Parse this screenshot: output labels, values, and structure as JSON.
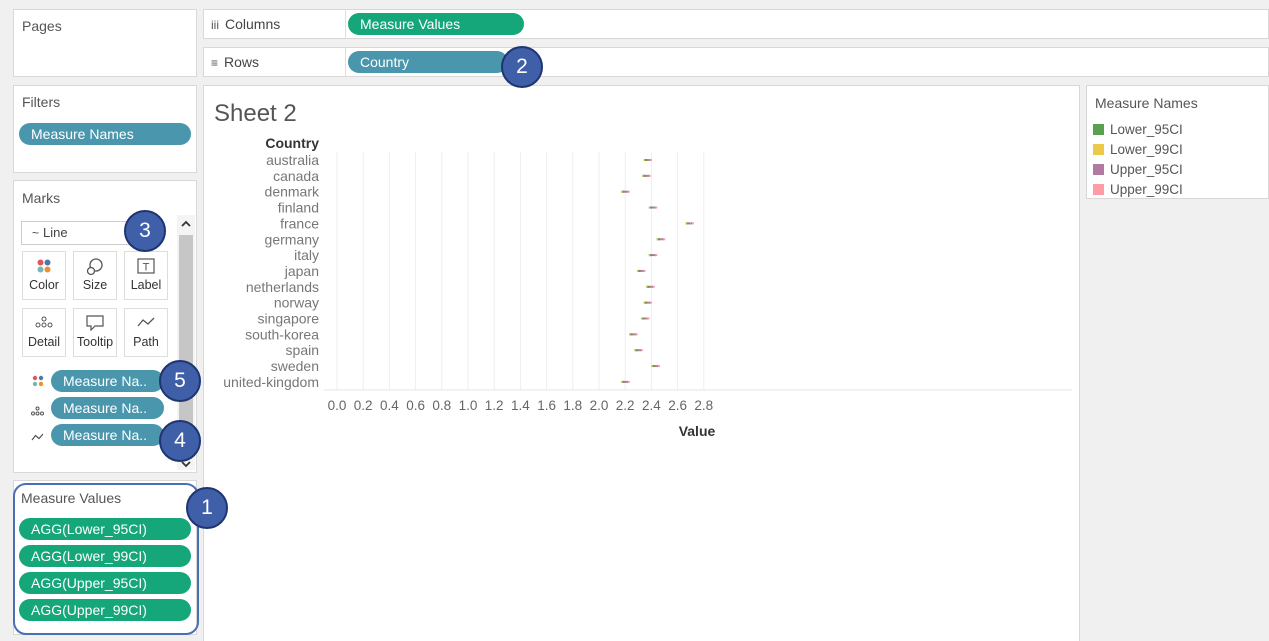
{
  "pages": {
    "title": "Pages"
  },
  "shelves": {
    "columns": {
      "label": "Columns",
      "icon": "iii",
      "pill": "Measure Values"
    },
    "rows": {
      "label": "Rows",
      "icon": "≡",
      "pill": "Country"
    }
  },
  "filters": {
    "title": "Filters",
    "pills": [
      "Measure Names"
    ]
  },
  "marks": {
    "title": "Marks",
    "type_icon": "~",
    "type": "Line",
    "buttons": [
      {
        "name": "color",
        "label": "Color",
        "icon": "color-icon"
      },
      {
        "name": "size",
        "label": "Size",
        "icon": "size-icon"
      },
      {
        "name": "label",
        "label": "Label",
        "icon": "label-icon"
      },
      {
        "name": "detail",
        "label": "Detail",
        "icon": "detail-icon"
      },
      {
        "name": "tooltip",
        "label": "Tooltip",
        "icon": "tooltip-icon"
      },
      {
        "name": "path",
        "label": "Path",
        "icon": "path-icon"
      }
    ],
    "fields": [
      {
        "icon": "color-icon",
        "label": "Measure Na.."
      },
      {
        "icon": "detail-icon",
        "label": "Measure Na.."
      },
      {
        "icon": "path-icon",
        "label": "Measure Na.."
      }
    ]
  },
  "measure_values": {
    "title": "Measure Values",
    "pills": [
      "AGG(Lower_95CI)",
      "AGG(Lower_99CI)",
      "AGG(Upper_95CI)",
      "AGG(Upper_99CI)"
    ]
  },
  "sheet": {
    "title": "Sheet 2"
  },
  "legend": {
    "title": "Measure Names",
    "items": [
      {
        "label": "Lower_95CI",
        "color": "#59a14f"
      },
      {
        "label": "Lower_99CI",
        "color": "#edc948"
      },
      {
        "label": "Upper_95CI",
        "color": "#b07aa1"
      },
      {
        "label": "Upper_99CI",
        "color": "#ff9da7"
      }
    ]
  },
  "callouts": [
    "1",
    "2",
    "3",
    "4",
    "5"
  ],
  "chart_data": {
    "type": "line",
    "orientation": "horizontal",
    "y_header": "Country",
    "xlabel": "Value",
    "xlim": [
      0,
      2.85
    ],
    "x_ticks": [
      "0.0",
      "0.2",
      "0.4",
      "0.6",
      "0.8",
      "1.0",
      "1.2",
      "1.4",
      "1.6",
      "1.8",
      "2.0",
      "2.2",
      "2.4",
      "2.6",
      "2.8"
    ],
    "categories": [
      "australia",
      "canada",
      "denmark",
      "finland",
      "france",
      "germany",
      "italy",
      "japan",
      "netherlands",
      "norway",
      "singapore",
      "south-korea",
      "spain",
      "sweden",
      "united-kingdom"
    ],
    "series": [
      {
        "name": "Lower_99CI",
        "color": "#edc948",
        "values": [
          2.34,
          2.33,
          2.17,
          2.38,
          2.66,
          2.44,
          2.38,
          2.29,
          2.36,
          2.34,
          2.32,
          2.23,
          2.27,
          2.4,
          2.17
        ]
      },
      {
        "name": "Lower_95CI",
        "color": "#59a14f",
        "values": [
          2.35,
          2.34,
          2.18,
          2.39,
          2.67,
          2.45,
          2.39,
          2.3,
          2.37,
          2.35,
          2.33,
          2.24,
          2.28,
          2.41,
          2.18
        ]
      },
      {
        "name": "Upper_95CI",
        "color": "#b07aa1",
        "values": [
          2.38,
          2.37,
          2.21,
          2.42,
          2.7,
          2.48,
          2.42,
          2.33,
          2.4,
          2.38,
          2.36,
          2.27,
          2.31,
          2.44,
          2.21
        ]
      },
      {
        "name": "Upper_99CI",
        "color": "#ff9da7",
        "values": [
          2.39,
          2.38,
          2.22,
          2.43,
          2.71,
          2.49,
          2.43,
          2.34,
          2.41,
          2.39,
          2.37,
          2.28,
          2.32,
          2.45,
          2.22
        ]
      }
    ]
  }
}
